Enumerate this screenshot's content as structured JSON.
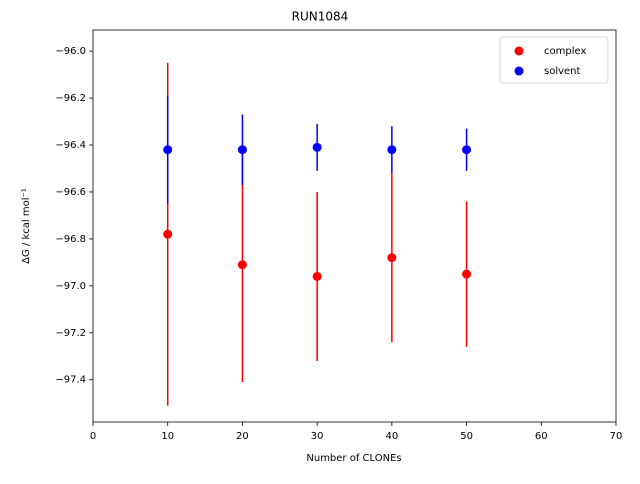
{
  "chart_data": {
    "type": "errorbar",
    "title": "RUN1084",
    "xlabel": "Number of CLONEs",
    "ylabel": "ΔG / kcal mol⁻¹",
    "x": [
      10,
      20,
      30,
      40,
      50
    ],
    "series": [
      {
        "name": "complex",
        "color": "#ff0000",
        "values": [
          -96.78,
          -96.91,
          -96.96,
          -96.88,
          -96.95
        ],
        "errors": [
          0.73,
          0.5,
          0.36,
          0.36,
          0.31
        ]
      },
      {
        "name": "solvent",
        "color": "#0000ff",
        "values": [
          -96.42,
          -96.42,
          -96.41,
          -96.42,
          -96.42
        ],
        "errors": [
          0.23,
          0.15,
          0.1,
          0.1,
          0.09
        ]
      }
    ],
    "xlim": [
      0,
      70
    ],
    "xticks": [
      0,
      10,
      20,
      30,
      40,
      50,
      60,
      70
    ],
    "ylim": [
      -97.58,
      -95.91
    ],
    "yticks": [
      {
        "value": -97.4,
        "label": "−97.4"
      },
      {
        "value": -97.2,
        "label": "−97.2"
      },
      {
        "value": -97.0,
        "label": "−97.0"
      },
      {
        "value": -96.8,
        "label": "−96.8"
      },
      {
        "value": -96.6,
        "label": "−96.6"
      },
      {
        "value": -96.4,
        "label": "−96.4"
      },
      {
        "value": -96.2,
        "label": "−96.2"
      },
      {
        "value": -96.0,
        "label": "−96.0"
      }
    ],
    "legend": "upper right",
    "grid": false
  }
}
